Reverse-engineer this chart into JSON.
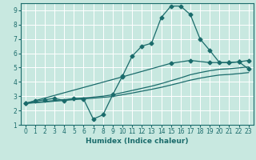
{
  "xlabel": "Humidex (Indice chaleur)",
  "xlim": [
    -0.5,
    23.5
  ],
  "ylim": [
    1,
    9.5
  ],
  "xticks": [
    0,
    1,
    2,
    3,
    4,
    5,
    6,
    7,
    8,
    9,
    10,
    11,
    12,
    13,
    14,
    15,
    16,
    17,
    18,
    19,
    20,
    21,
    22,
    23
  ],
  "yticks": [
    1,
    2,
    3,
    4,
    5,
    6,
    7,
    8,
    9
  ],
  "bg_color": "#c8e8e0",
  "grid_color": "#ffffff",
  "line_color": "#1a6b6b",
  "lines": [
    {
      "x": [
        0,
        1,
        2,
        3,
        4,
        5,
        6,
        7,
        8,
        9,
        10,
        11,
        12,
        13,
        14,
        15,
        16,
        17,
        18,
        19,
        20,
        21,
        22,
        23
      ],
      "y": [
        2.5,
        2.65,
        2.75,
        2.85,
        2.7,
        2.85,
        2.8,
        1.4,
        1.7,
        3.1,
        4.4,
        5.8,
        6.5,
        6.7,
        8.5,
        9.3,
        9.3,
        8.7,
        7.0,
        6.2,
        5.35,
        5.35,
        5.4,
        4.9
      ],
      "marker": "D",
      "markersize": 2.5
    },
    {
      "x": [
        0,
        10,
        15,
        17,
        19,
        21,
        22,
        23
      ],
      "y": [
        2.5,
        4.35,
        5.3,
        5.5,
        5.35,
        5.35,
        5.4,
        5.5
      ],
      "marker": "D",
      "markersize": 2.5
    },
    {
      "x": [
        0,
        1,
        2,
        3,
        4,
        5,
        6,
        7,
        8,
        9,
        10,
        11,
        12,
        13,
        14,
        15,
        16,
        17,
        18,
        19,
        20,
        21,
        22,
        23
      ],
      "y": [
        2.5,
        2.56,
        2.63,
        2.7,
        2.76,
        2.82,
        2.88,
        2.94,
        3.0,
        3.1,
        3.25,
        3.4,
        3.55,
        3.7,
        3.88,
        4.08,
        4.28,
        4.5,
        4.65,
        4.78,
        4.88,
        4.92,
        4.98,
        5.05
      ],
      "marker": null,
      "markersize": 0
    },
    {
      "x": [
        0,
        1,
        2,
        3,
        4,
        5,
        6,
        7,
        8,
        9,
        10,
        11,
        12,
        13,
        14,
        15,
        16,
        17,
        18,
        19,
        20,
        21,
        22,
        23
      ],
      "y": [
        2.5,
        2.54,
        2.59,
        2.65,
        2.7,
        2.76,
        2.81,
        2.86,
        2.92,
        2.98,
        3.1,
        3.22,
        3.35,
        3.48,
        3.62,
        3.78,
        3.95,
        4.12,
        4.26,
        4.38,
        4.48,
        4.52,
        4.58,
        4.65
      ],
      "marker": null,
      "markersize": 0
    }
  ]
}
